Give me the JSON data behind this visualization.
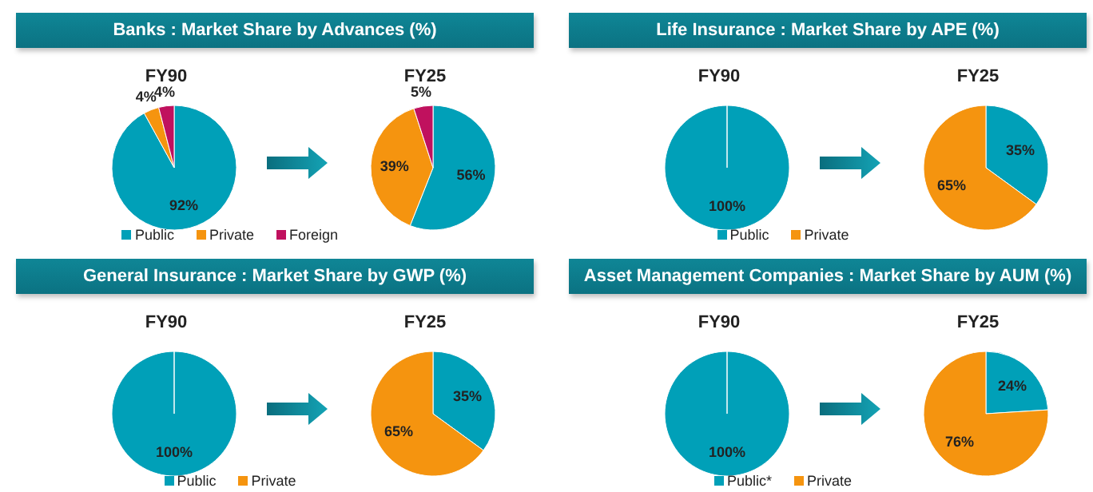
{
  "chart_data": [
    {
      "type": "pie",
      "title": "Banks : Market Share by Advances (%)",
      "categories": [
        "Public",
        "Private",
        "Foreign"
      ],
      "colors": [
        "#00a0b8",
        "#f5940f",
        "#c0115e"
      ],
      "legend": "bottom",
      "series": [
        {
          "name": "FY90",
          "values": [
            92,
            4,
            4
          ],
          "value_labels": [
            "92%",
            "4%",
            "4%"
          ]
        },
        {
          "name": "FY25",
          "values": [
            56,
            39,
            5
          ],
          "value_labels": [
            "56%",
            "39%",
            "5%"
          ]
        }
      ]
    },
    {
      "type": "pie",
      "title": "Life Insurance : Market Share by APE (%)",
      "categories": [
        "Public",
        "Private"
      ],
      "colors": [
        "#00a0b8",
        "#f5940f"
      ],
      "legend": "bottom",
      "series": [
        {
          "name": "FY90",
          "values": [
            100,
            0
          ],
          "value_labels": [
            "100%",
            null
          ]
        },
        {
          "name": "FY25",
          "values": [
            35,
            65
          ],
          "value_labels": [
            "35%",
            "65%"
          ]
        }
      ]
    },
    {
      "type": "pie",
      "title": "General Insurance : Market Share by GWP (%)",
      "categories": [
        "Public",
        "Private"
      ],
      "colors": [
        "#00a0b8",
        "#f5940f"
      ],
      "legend": "bottom",
      "series": [
        {
          "name": "FY90",
          "values": [
            100,
            0
          ],
          "value_labels": [
            "100%",
            null
          ]
        },
        {
          "name": "FY25",
          "values": [
            35,
            65
          ],
          "value_labels": [
            "35%",
            "65%"
          ]
        }
      ]
    },
    {
      "type": "pie",
      "title": "Asset Management Companies : Market Share by AUM (%)",
      "categories": [
        "Public*",
        "Private"
      ],
      "colors": [
        "#00a0b8",
        "#f5940f"
      ],
      "legend": "bottom",
      "series": [
        {
          "name": "FY90",
          "values": [
            100,
            0
          ],
          "value_labels": [
            "100%",
            null
          ]
        },
        {
          "name": "FY25",
          "values": [
            24,
            76
          ],
          "value_labels": [
            "24%",
            "76%"
          ]
        }
      ]
    }
  ]
}
